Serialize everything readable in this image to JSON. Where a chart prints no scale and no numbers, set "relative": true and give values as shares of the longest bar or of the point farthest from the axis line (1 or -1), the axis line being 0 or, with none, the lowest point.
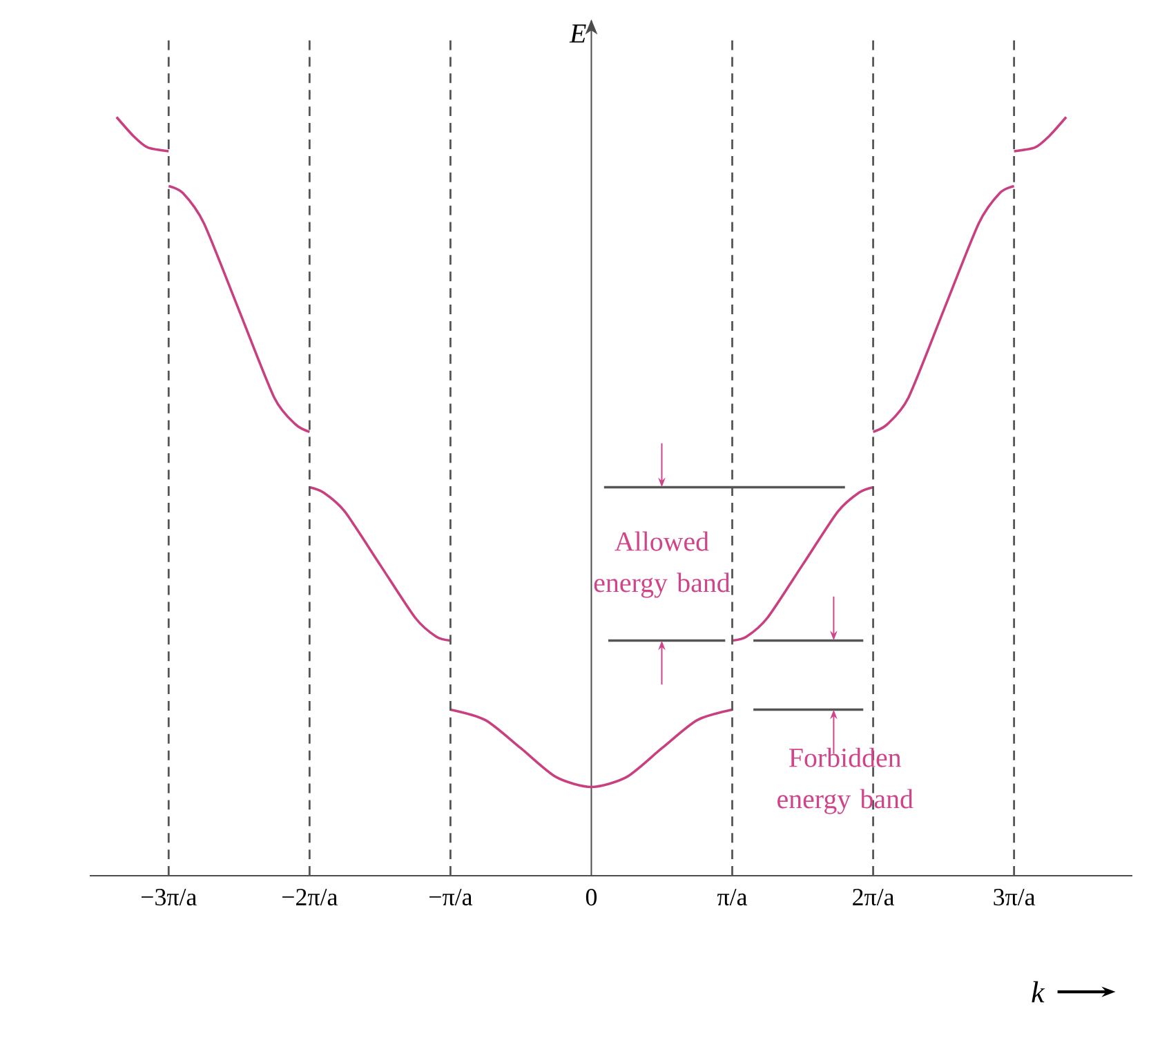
{
  "chart_data": {
    "type": "line",
    "relative": true,
    "xlabel": "k",
    "ylabel": "E",
    "xlim": [
      -3.56,
      3.84
    ],
    "xticks": [
      {
        "value": -3,
        "label": "−3π/a"
      },
      {
        "value": -2,
        "label": "−2π/a"
      },
      {
        "value": -1,
        "label": "−π/a"
      },
      0,
      {
        "value": 1,
        "label": "π/a"
      },
      {
        "value": 2,
        "label": "2π/a"
      },
      {
        "value": 3,
        "label": "3π/a"
      }
    ],
    "grid": false,
    "marker": "none",
    "line_style": "solid",
    "series": [
      {
        "color": "#c8407f",
        "x": [
          -1,
          -0.75,
          -0.5,
          -0.25,
          0,
          0.25,
          0.5,
          0.75,
          1
        ],
        "values": [
          0.219,
          0.205,
          0.168,
          0.13,
          0.117,
          0.13,
          0.168,
          0.205,
          0.219
        ]
      },
      {
        "color": "#c8407f",
        "x": [
          1,
          1.1,
          1.25,
          1.5,
          1.75,
          1.9,
          2
        ],
        "values": [
          0.31,
          0.315,
          0.34,
          0.41,
          0.48,
          0.505,
          0.512
        ]
      },
      {
        "color": "#c8407f",
        "x": [
          -2,
          -1.9,
          -1.75,
          -1.5,
          -1.25,
          -1.1,
          -1
        ],
        "values": [
          0.512,
          0.505,
          0.48,
          0.41,
          0.34,
          0.315,
          0.31
        ]
      },
      {
        "color": "#c8407f",
        "x": [
          2,
          2.1,
          2.25,
          2.5,
          2.75,
          2.9,
          3
        ],
        "values": [
          0.585,
          0.595,
          0.63,
          0.745,
          0.86,
          0.9,
          0.909
        ]
      },
      {
        "color": "#c8407f",
        "x": [
          -3,
          -2.9,
          -2.75,
          -2.5,
          -2.25,
          -2.1,
          -2
        ],
        "values": [
          0.909,
          0.9,
          0.86,
          0.745,
          0.63,
          0.595,
          0.585
        ]
      },
      {
        "color": "#c8407f",
        "x": [
          3,
          3.15,
          3.25,
          3.37
        ],
        "values": [
          0.955,
          0.96,
          0.975,
          1.0
        ]
      },
      {
        "color": "#c8407f",
        "x": [
          -3.37,
          -3.25,
          -3.15,
          -3
        ],
        "values": [
          1.0,
          0.975,
          0.96,
          0.955
        ]
      },
      {
        "color": "#555555",
        "x": [
          0.09,
          1.8
        ],
        "values": [
          0.512,
          0.512
        ]
      },
      {
        "color": "#555555",
        "x": [
          0.12,
          0.95
        ],
        "values": [
          0.31,
          0.31
        ]
      },
      {
        "color": "#555555",
        "x": [
          1.15,
          1.93
        ],
        "values": [
          0.31,
          0.31
        ]
      },
      {
        "color": "#555555",
        "x": [
          1.15,
          1.93
        ],
        "values": [
          0.219,
          0.219
        ]
      }
    ],
    "ref_lines": [
      {
        "axis": "x",
        "value": -3,
        "color": "#555555",
        "line_style": "dashed"
      },
      {
        "axis": "x",
        "value": -2,
        "color": "#555555",
        "line_style": "dashed"
      },
      {
        "axis": "x",
        "value": -1,
        "color": "#555555",
        "line_style": "dashed"
      },
      {
        "axis": "x",
        "value": 1,
        "color": "#555555",
        "line_style": "dashed"
      },
      {
        "axis": "x",
        "value": 2,
        "color": "#555555",
        "line_style": "dashed"
      },
      {
        "axis": "x",
        "value": 3,
        "color": "#555555",
        "line_style": "dashed"
      }
    ],
    "annotations": [
      "Allowed energy band",
      "Forbidden energy band"
    ]
  }
}
